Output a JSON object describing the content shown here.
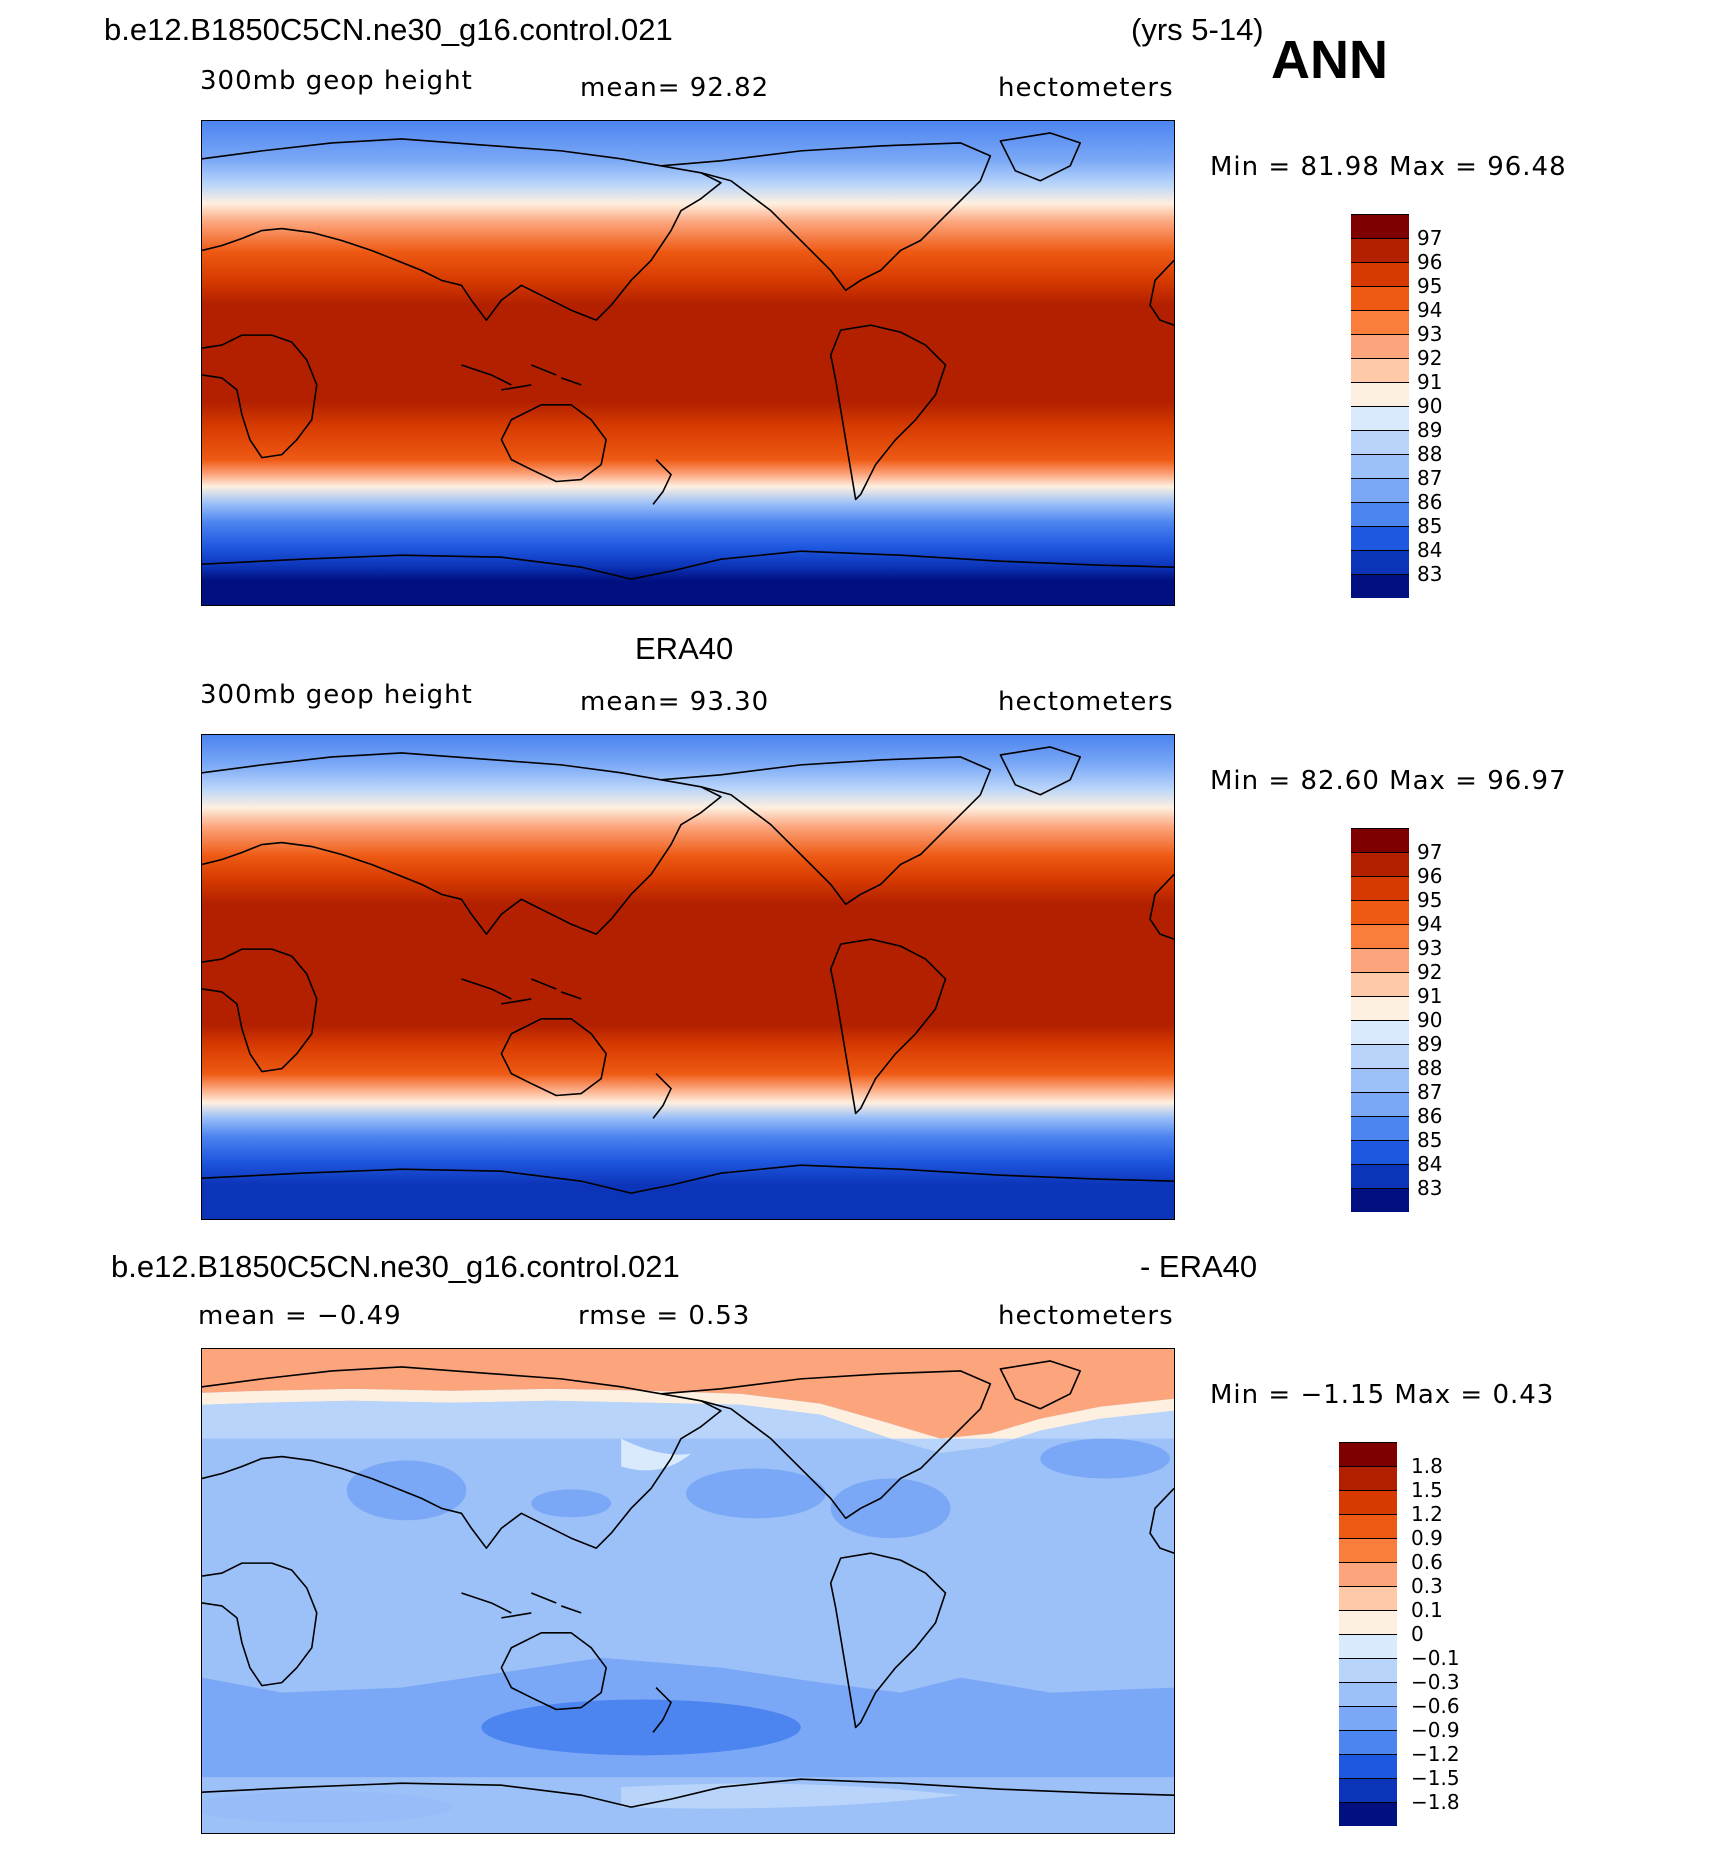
{
  "header": {
    "case": "b.e12.B1850C5CN.ne30_g16.control.021",
    "years": "(yrs 5-14)",
    "season": "ANN"
  },
  "panels": [
    {
      "title": "",
      "variable": "300mb  geop  height",
      "stat": "mean=   92.82",
      "units": "hectometers",
      "minmax": "Min  =   81.98  Max  =   96.48",
      "levels": [
        "97",
        "96",
        "95",
        "94",
        "93",
        "92",
        "91",
        "90",
        "89",
        "88",
        "87",
        "86",
        "85",
        "84",
        "83"
      ],
      "colors": [
        "#7f0000",
        "#b22000",
        "#d63a00",
        "#ee5a14",
        "#fa7d3c",
        "#fca47c",
        "#fdc9a8",
        "#fef0e0",
        "#d8eafc",
        "#b8d4fa",
        "#9cc0f8",
        "#7aa8f6",
        "#4c84f0",
        "#1f58e0",
        "#0c34b8",
        "#001080"
      ]
    },
    {
      "title": "ERA40",
      "variable": "300mb  geop  height",
      "stat": "mean=   93.30",
      "units": "hectometers",
      "minmax": "Min  =   82.60  Max  =   96.97",
      "levels": [
        "97",
        "96",
        "95",
        "94",
        "93",
        "92",
        "91",
        "90",
        "89",
        "88",
        "87",
        "86",
        "85",
        "84",
        "83"
      ],
      "colors": [
        "#7f0000",
        "#b22000",
        "#d63a00",
        "#ee5a14",
        "#fa7d3c",
        "#fca47c",
        "#fdc9a8",
        "#fef0e0",
        "#d8eafc",
        "#b8d4fa",
        "#9cc0f8",
        "#7aa8f6",
        "#4c84f0",
        "#1f58e0",
        "#0c34b8",
        "#001080"
      ]
    },
    {
      "title": "b.e12.B1850C5CN.ne30_g16.control.021",
      "title_right": "- ERA40",
      "stat_left": "mean =   −0.49",
      "stat": "rmse =     0.53",
      "units": "hectometers",
      "minmax": "Min  =   −1.15  Max  =     0.43",
      "levels": [
        "1.8",
        "1.5",
        "1.2",
        "0.9",
        "0.6",
        "0.3",
        "0.1",
        "0",
        "−0.1",
        "−0.3",
        "−0.6",
        "−0.9",
        "−1.2",
        "−1.5",
        "−1.8"
      ],
      "colors": [
        "#7f0000",
        "#b22000",
        "#d63a00",
        "#ee5a14",
        "#fa7d3c",
        "#fca47c",
        "#fdc9a8",
        "#fef0e0",
        "#d8eafc",
        "#b8d4fa",
        "#9cc0f8",
        "#7aa8f6",
        "#4c84f0",
        "#1f58e0",
        "#0c34b8",
        "#001080"
      ]
    }
  ]
}
